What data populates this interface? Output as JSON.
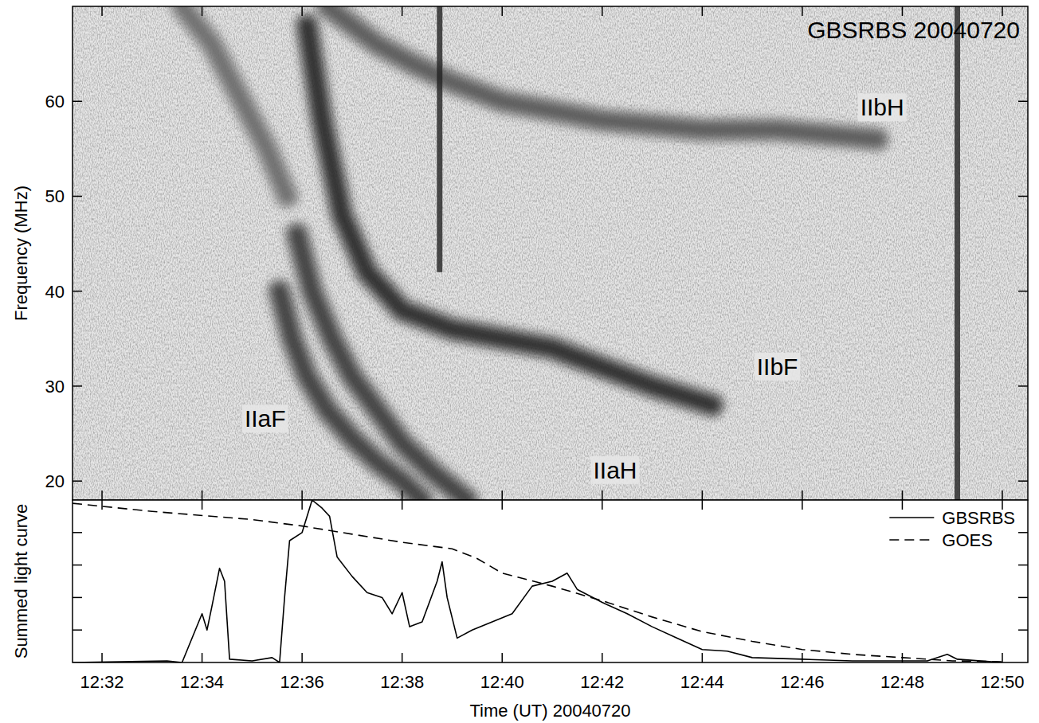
{
  "chart_data": [
    {
      "type": "spectrogram",
      "title": "GBSRBS 20040720",
      "y_label": "Frequency (MHz)",
      "xlim": [
        31.41,
        50.51
      ],
      "ylim": [
        18,
        70
      ],
      "xticks": [
        {
          "value": 32,
          "label": "12:32"
        },
        {
          "value": 34,
          "label": "12:34"
        },
        {
          "value": 36,
          "label": "12:36"
        },
        {
          "value": 38,
          "label": "12:38"
        },
        {
          "value": 40,
          "label": "12:40"
        },
        {
          "value": 42,
          "label": "12:42"
        },
        {
          "value": 44,
          "label": "12:44"
        },
        {
          "value": 46,
          "label": "12:46"
        },
        {
          "value": 48,
          "label": "12:48"
        },
        {
          "value": 50,
          "label": "12:50"
        }
      ],
      "yticks": [
        20,
        30,
        40,
        50,
        60
      ],
      "tick_labels": "y",
      "series": [
        {
          "type": "lane",
          "color": "#3a3a3a",
          "x": [
            35.55,
            35.8,
            36.1,
            36.5,
            37,
            37.5,
            38,
            38.4
          ],
          "values": [
            40,
            35,
            31,
            27.5,
            24.5,
            22,
            20,
            18
          ]
        },
        {
          "type": "lane",
          "color": "#3a3a3a",
          "x": [
            35.9,
            36.2,
            36.6,
            37,
            37.5,
            38,
            38.6,
            39.3
          ],
          "values": [
            46,
            40,
            35,
            31,
            27.5,
            24,
            21,
            18
          ]
        },
        {
          "type": "lane",
          "color": "#262626",
          "x": [
            36.1,
            36.4,
            36.8,
            37.3,
            38,
            39,
            40,
            41,
            42,
            43,
            44.2
          ],
          "values": [
            68,
            58,
            48,
            42,
            38,
            36,
            35,
            34,
            32,
            30,
            28
          ]
        },
        {
          "type": "lane",
          "color": "#555555",
          "x": [
            36.5,
            37,
            37.5,
            38.2,
            39,
            40,
            41,
            42,
            43,
            44,
            45.5,
            47.5
          ],
          "values": [
            70,
            68,
            66,
            64,
            62,
            60,
            59,
            58,
            57.5,
            57,
            57,
            56
          ]
        },
        {
          "type": "lane",
          "color": "#6a6a6a",
          "x": [
            33.6,
            34.2,
            34.8,
            35.3,
            35.7
          ],
          "values": [
            70,
            66,
            60,
            55,
            50
          ]
        },
        {
          "type": "line",
          "color": "#222222",
          "x": [
            38.75,
            38.75
          ],
          "values": [
            70,
            42
          ]
        },
        {
          "type": "line",
          "color": "#222222",
          "x": [
            49.1,
            49.1
          ],
          "values": [
            70,
            18
          ]
        }
      ],
      "annotations": [
        {
          "text": "IIaF",
          "x": 34.85,
          "y": 26.6
        },
        {
          "text": "IIaH",
          "x": 41.82,
          "y": 21.2
        },
        {
          "text": "IIbF",
          "x": 45.09,
          "y": 32.1
        },
        {
          "text": "IIbH",
          "x": 47.16,
          "y": 59.4
        }
      ]
    },
    {
      "type": "line",
      "x_label": "Time (UT) 20040720",
      "y_label": "Summed light curve",
      "xlim": [
        31.41,
        50.51
      ],
      "ylim": [
        0,
        1
      ],
      "xticks": [
        {
          "value": 32,
          "label": "12:32"
        },
        {
          "value": 34,
          "label": "12:34"
        },
        {
          "value": 36,
          "label": "12:36"
        },
        {
          "value": 38,
          "label": "12:38"
        },
        {
          "value": 40,
          "label": "12:40"
        },
        {
          "value": 42,
          "label": "12:42"
        },
        {
          "value": 44,
          "label": "12:44"
        },
        {
          "value": 46,
          "label": "12:46"
        },
        {
          "value": 48,
          "label": "12:48"
        },
        {
          "value": 50,
          "label": "12:50"
        }
      ],
      "yticks": [
        0.2,
        0.4,
        0.6,
        0.8
      ],
      "tick_labels": "x",
      "legend": "upper right",
      "series": [
        {
          "name": "GBSRBS",
          "color": "#000000",
          "line_style": "solid",
          "x": [
            31.41,
            33.3,
            33.6,
            34.0,
            34.1,
            34.2,
            34.35,
            34.45,
            34.55,
            35.0,
            35.4,
            35.55,
            35.65,
            35.75,
            36.0,
            36.2,
            36.4,
            36.55,
            36.7,
            37.0,
            37.3,
            37.6,
            37.8,
            38.0,
            38.15,
            38.4,
            38.7,
            38.8,
            38.9,
            39.1,
            39.4,
            39.8,
            40.2,
            40.6,
            41.0,
            41.3,
            41.5,
            42.0,
            42.5,
            43.0,
            43.5,
            44.0,
            44.5,
            45.0,
            46.0,
            47.0,
            48.5,
            48.9,
            49.1,
            50.0
          ],
          "values": [
            0,
            0.01,
            0,
            0.3,
            0.2,
            0.35,
            0.58,
            0.5,
            0.02,
            0.01,
            0.03,
            0,
            0.4,
            0.75,
            0.8,
            1.0,
            0.95,
            0.9,
            0.65,
            0.53,
            0.43,
            0.4,
            0.3,
            0.43,
            0.22,
            0.25,
            0.5,
            0.62,
            0.4,
            0.15,
            0.2,
            0.25,
            0.3,
            0.47,
            0.5,
            0.55,
            0.45,
            0.37,
            0.3,
            0.22,
            0.15,
            0.08,
            0.07,
            0.03,
            0.02,
            0.01,
            0.01,
            0.05,
            0.02,
            0
          ]
        },
        {
          "name": "GOES",
          "color": "#000000",
          "line_style": "dashed",
          "x": [
            31.41,
            33.0,
            35.0,
            36.0,
            37.0,
            38.0,
            39.0,
            39.5,
            40.0,
            41.0,
            42.0,
            43.0,
            44.0,
            45.0,
            46.0,
            47.0,
            48.0,
            49.0,
            50.0
          ],
          "values": [
            0.98,
            0.93,
            0.88,
            0.84,
            0.79,
            0.74,
            0.7,
            0.64,
            0.55,
            0.47,
            0.38,
            0.28,
            0.19,
            0.13,
            0.08,
            0.05,
            0.03,
            0.01,
            0.005
          ]
        }
      ]
    }
  ]
}
